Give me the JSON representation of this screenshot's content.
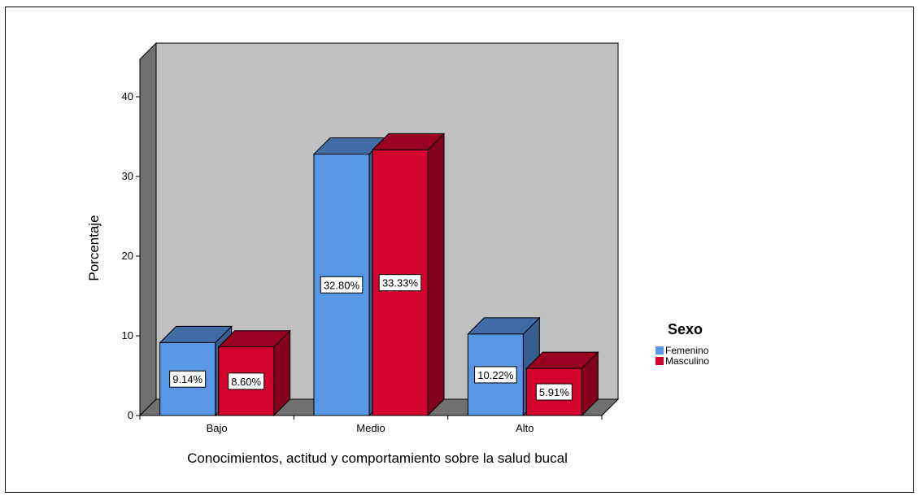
{
  "chart_data": {
    "type": "bar",
    "title": "",
    "xlabel": "Conocimientos, actitud y comportamiento sobre la salud bucal",
    "ylabel": "Porcentaje",
    "categories": [
      "Bajo",
      "Medio",
      "Alto"
    ],
    "series": [
      {
        "name": "Femenino",
        "values": [
          9.14,
          32.8,
          10.22
        ],
        "labels": [
          "9.14%",
          "32.80%",
          "10.22%"
        ],
        "color": "#5a96e6"
      },
      {
        "name": "Masculino",
        "values": [
          8.6,
          33.33,
          5.91
        ],
        "labels": [
          "8.60%",
          "33.33%",
          "5.91%"
        ],
        "color": "#d4022e"
      }
    ],
    "ylim": [
      0,
      40
    ],
    "yticks": [
      0,
      10,
      20,
      30,
      40
    ],
    "legend_title": "Sexo",
    "legend_position": "right",
    "grid": false,
    "style": "3d"
  }
}
